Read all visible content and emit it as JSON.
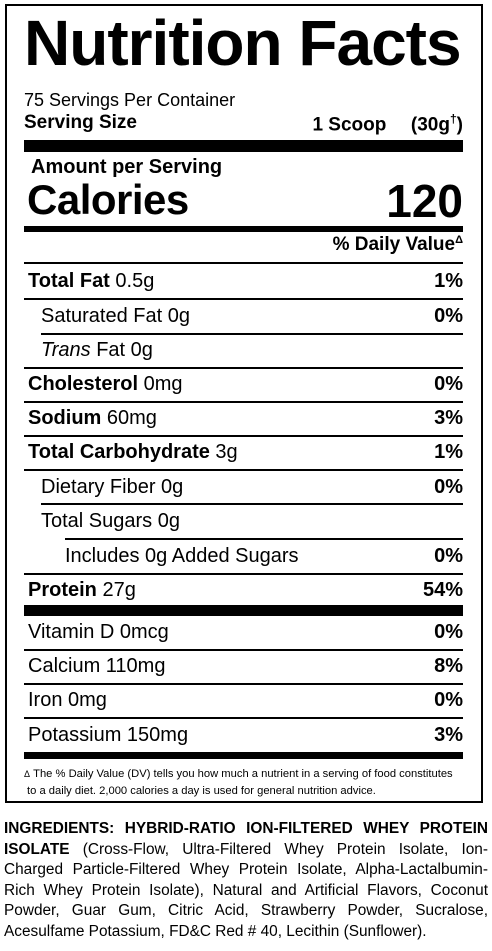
{
  "title": "Nutrition Facts",
  "servings_per_container": "75 Servings Per Container",
  "serving_size_label": "Serving Size",
  "serving_size_value": "1 Scoop",
  "serving_size_grams": "(30g",
  "serving_size_mark": "†",
  "serving_size_close": ")",
  "amount_per_serving": "Amount per Serving",
  "calories_label": "Calories",
  "calories_value": "120",
  "daily_value_header": "% Daily Value",
  "daily_value_mark": "Δ",
  "nutrients": [
    {
      "name": "Total Fat",
      "amount": " 0.5g",
      "dv": "1%"
    },
    {
      "name": "Saturated Fat 0g",
      "amount": "",
      "dv": "0%"
    },
    {
      "name": "Trans",
      "amount": " Fat 0g",
      "dv": ""
    },
    {
      "name": "Cholesterol",
      "amount": " 0mg",
      "dv": "0%"
    },
    {
      "name": "Sodium",
      "amount": " 60mg",
      "dv": "3%"
    },
    {
      "name": "Total Carbohydrate",
      "amount": " 3g",
      "dv": "1%"
    },
    {
      "name": "Dietary Fiber 0g",
      "amount": "",
      "dv": "0%"
    },
    {
      "name": "Total Sugars 0g",
      "amount": "",
      "dv": ""
    },
    {
      "name": "Includes 0g Added Sugars",
      "amount": "",
      "dv": "0%"
    },
    {
      "name": "Protein",
      "amount": " 27g",
      "dv": "54%"
    }
  ],
  "vitamins": [
    {
      "name": "Vitamin D 0mcg",
      "dv": "0%"
    },
    {
      "name": "Calcium 110mg",
      "dv": "8%"
    },
    {
      "name": "Iron 0mg",
      "dv": "0%"
    },
    {
      "name": "Potassium 150mg",
      "dv": "3%"
    }
  ],
  "footnote": {
    "mark": "Δ",
    "line1": "The % Daily Value (DV) tells you how much a nutrient in a serving of food constitutes",
    "line2": "to a daily diet. 2,000 calories a day is used for general nutrition advice."
  },
  "ingredients": {
    "heading": "INGREDIENTS: HYBRID-RATIO ION-FILTERED WHEY PROTEIN ISOLATE",
    "text": " (Cross-Flow, Ultra-Filtered Whey Protein Isolate, Ion-Charged Particle-Filtered Whey Protein Isolate, Alpha-Lactalbumin-Rich Whey Protein Isolate), Natural and Artificial Flavors, Coconut Powder, Guar Gum, Citric Acid, Strawberry Powder, Sucralose, Acesulfame Potassium, FD&C Red # 40, Lecithin (Sunflower)."
  }
}
